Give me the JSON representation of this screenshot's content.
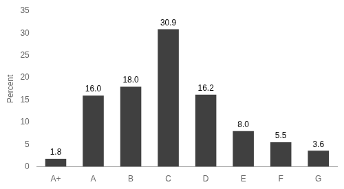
{
  "chart_data": {
    "type": "bar",
    "categories": [
      "A+",
      "A",
      "B",
      "C",
      "D",
      "E",
      "F",
      "G"
    ],
    "values": [
      1.8,
      16.0,
      18.0,
      30.9,
      16.2,
      8.0,
      5.5,
      3.6
    ],
    "value_labels": [
      "1.8",
      "16.0",
      "18.0",
      "30.9",
      "16.2",
      "8.0",
      "5.5",
      "3.6"
    ],
    "data_labels": true,
    "color": "#404040",
    "ylabel": "Percent",
    "ylim": [
      0,
      35
    ],
    "yticks": [
      0,
      5,
      10,
      15,
      20,
      25,
      30,
      35
    ],
    "grid": false
  }
}
